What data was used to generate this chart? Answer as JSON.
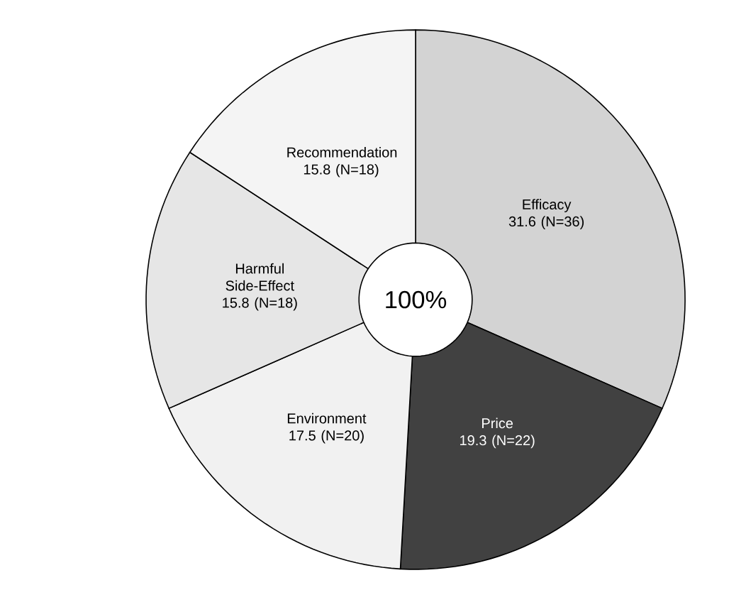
{
  "chart_data": {
    "type": "donut",
    "categories": [
      "Efficacy",
      "Price",
      "Environment",
      "Harmful Side-Effect",
      "Recommendation"
    ],
    "values": [
      31.6,
      19.3,
      17.5,
      15.8,
      15.8
    ],
    "value_labels": [
      "31.6 (N=36)",
      "19.3 (N=22)",
      "17.5 (N=20)",
      "15.8 (N=18)",
      "15.8 (N=18)"
    ],
    "colors": [
      "#d3d3d3",
      "#414141",
      "#f1f1f1",
      "#e6e6e6",
      "#f4f4f4"
    ],
    "annotations": [
      "100%"
    ]
  }
}
